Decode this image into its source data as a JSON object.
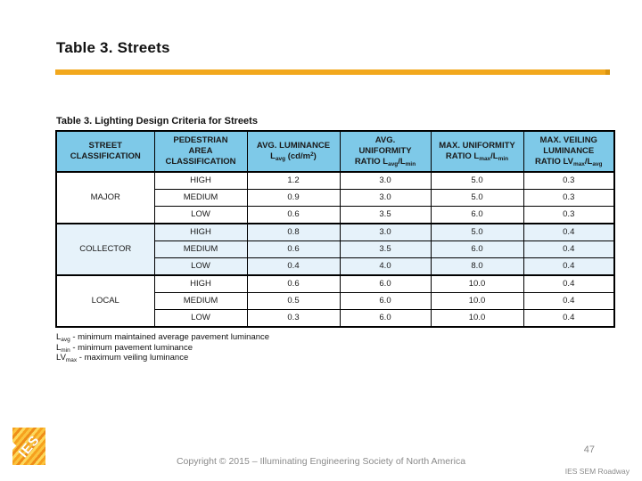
{
  "slide": {
    "title": "Table 3. Streets",
    "accent_color": "#F2A81D",
    "background_color": "#FFFFFF"
  },
  "table": {
    "caption": "Table 3. Lighting Design Criteria for Streets",
    "header_bg_color": "#7EC9E8",
    "band_bg_color": "#E6F2FA",
    "border_color": "#000000",
    "headers": [
      "STREET\nCLASSIFICATION",
      "PEDESTRIAN\nAREA\nCLASSIFICATION",
      "AVG. LUMINANCE\nL~avg~ (cd/m^2^)",
      "AVG.\nUNIFORMITY\nRATIO  L~avg~/L~min~",
      "MAX. UNIFORMITY\nRATIO L~max~/L~min~",
      "MAX. VEILING\nLUMINANCE\nRATIO LV~max~/L~avg~"
    ],
    "groups": [
      {
        "label": "MAJOR",
        "banded": false,
        "rows": [
          [
            "HIGH",
            "1.2",
            "3.0",
            "5.0",
            "0.3"
          ],
          [
            "MEDIUM",
            "0.9",
            "3.0",
            "5.0",
            "0.3"
          ],
          [
            "LOW",
            "0.6",
            "3.5",
            "6.0",
            "0.3"
          ]
        ]
      },
      {
        "label": "COLLECTOR",
        "banded": true,
        "rows": [
          [
            "HIGH",
            "0.8",
            "3.0",
            "5.0",
            "0.4"
          ],
          [
            "MEDIUM",
            "0.6",
            "3.5",
            "6.0",
            "0.4"
          ],
          [
            "LOW",
            "0.4",
            "4.0",
            "8.0",
            "0.4"
          ]
        ]
      },
      {
        "label": "LOCAL",
        "banded": false,
        "rows": [
          [
            "HIGH",
            "0.6",
            "6.0",
            "10.0",
            "0.4"
          ],
          [
            "MEDIUM",
            "0.5",
            "6.0",
            "10.0",
            "0.4"
          ],
          [
            "LOW",
            "0.3",
            "6.0",
            "10.0",
            "0.4"
          ]
        ]
      }
    ],
    "footnotes": [
      "L~avg~ - minimum maintained average pavement luminance",
      "L~min~ - minimum pavement luminance",
      "LV~max~ - maximum veiling luminance"
    ]
  },
  "footer": {
    "copyright": "Copyright © 2015 – Illuminating Engineering Society of North America",
    "page_number": "47",
    "deck_label": "IES SEM Roadway",
    "logo_text": "IES"
  }
}
